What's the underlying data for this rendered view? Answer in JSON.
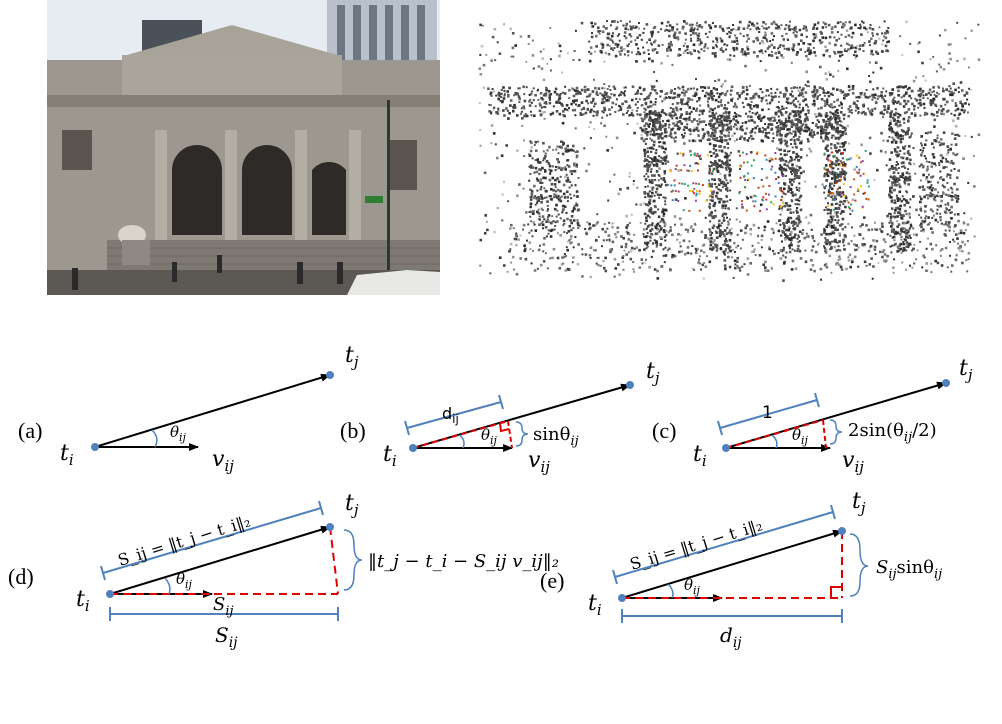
{
  "photo": {
    "icon": "library-building-photo",
    "street_sign": ""
  },
  "point_cloud": {
    "icon": "sparse-3d-point-cloud"
  },
  "colors": {
    "arrow": "#000000",
    "point": "#4f81bd",
    "bracket": "#4f81bd",
    "dash": "#e00000",
    "stone": "#9c978f",
    "sky": "#e6ecf2"
  },
  "panels": {
    "a": {
      "tag": "(a)",
      "ti": "t",
      "ti_sub": "i",
      "tj": "t",
      "tj_sub": "j",
      "v": "v",
      "v_sub": "ij",
      "theta": "θ",
      "theta_sub": "ij"
    },
    "b": {
      "tag": "(b)",
      "ti": "t",
      "ti_sub": "i",
      "tj": "t",
      "tj_sub": "j",
      "v": "v",
      "v_sub": "ij",
      "theta": "θ",
      "theta_sub": "ij",
      "d": "d",
      "d_sub": "ij",
      "side": "sinθ",
      "side_sub": "ij"
    },
    "c": {
      "tag": "(c)",
      "ti": "t",
      "ti_sub": "i",
      "tj": "t",
      "tj_sub": "j",
      "v": "v",
      "v_sub": "ij",
      "theta": "θ",
      "theta_sub": "ij",
      "one": "1",
      "side_pre": "2sin(θ",
      "side_sub": "ij",
      "side_post": "/2)"
    },
    "d": {
      "tag": "(d)",
      "ti": "t",
      "ti_sub": "i",
      "tj": "t",
      "tj_sub": "j",
      "theta": "θ",
      "theta_sub": "ij",
      "s_formula": "S_ij = ‖t_j − t_i‖₂",
      "s_bottom": "S",
      "s_bottom_sub": "ij",
      "s_arrow": "S",
      "s_arrow_sub": "ij",
      "side_formula": "‖t_j − t_i − S_ij v_ij‖₂"
    },
    "e": {
      "tag": "(e)",
      "ti": "t",
      "ti_sub": "i",
      "tj": "t",
      "tj_sub": "j",
      "theta": "θ",
      "theta_sub": "ij",
      "s_formula": "S_ij = ‖t_j − t_i‖₂",
      "d": "d",
      "d_sub": "ij",
      "side": "S",
      "side_sub": "ij",
      "side_post": "sinθ",
      "side_post_sub": "ij"
    }
  }
}
